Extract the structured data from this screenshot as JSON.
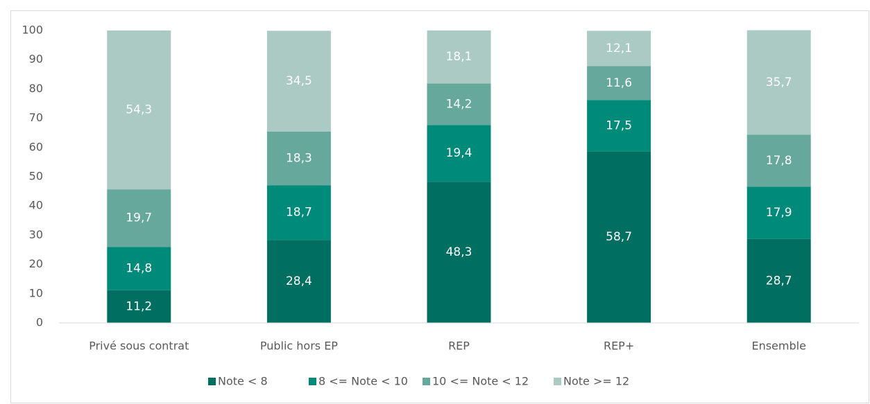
{
  "chart_data": {
    "type": "bar",
    "stacked": true,
    "categories": [
      "Privé sous contrat",
      "Public hors EP",
      "REP",
      "REP+",
      "Ensemble"
    ],
    "series": [
      {
        "name": "Note < 8",
        "color": "#006e60",
        "values": [
          11.2,
          28.4,
          48.3,
          58.7,
          28.7
        ],
        "value_labels": [
          "11,2",
          "28,4",
          "48,3",
          "58,7",
          "28,7"
        ]
      },
      {
        "name": "8 <= Note < 10",
        "color": "#008a7a",
        "values": [
          14.8,
          18.7,
          19.4,
          17.5,
          17.9
        ],
        "value_labels": [
          "14,8",
          "18,7",
          "19,4",
          "17,5",
          "17,9"
        ]
      },
      {
        "name": "10 <= Note < 12",
        "color": "#66a99c",
        "values": [
          19.7,
          18.3,
          14.2,
          11.6,
          17.8
        ],
        "value_labels": [
          "19,7",
          "18,3",
          "14,2",
          "11,6",
          "17,8"
        ]
      },
      {
        "name": "Note >= 12",
        "color": "#abcac4",
        "values": [
          54.3,
          34.5,
          18.1,
          12.1,
          35.7
        ],
        "value_labels": [
          "54,3",
          "34,5",
          "18,1",
          "12,1",
          "35,7"
        ]
      }
    ],
    "ylim": [
      0,
      100
    ],
    "yticks": [
      0,
      10,
      20,
      30,
      40,
      50,
      60,
      70,
      80,
      90,
      100
    ],
    "grid": false,
    "legend": "bottom"
  }
}
